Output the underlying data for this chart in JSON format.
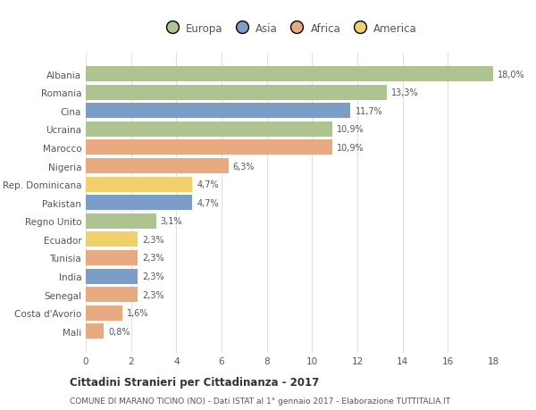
{
  "countries": [
    "Albania",
    "Romania",
    "Cina",
    "Ucraina",
    "Marocco",
    "Nigeria",
    "Rep. Dominicana",
    "Pakistan",
    "Regno Unito",
    "Ecuador",
    "Tunisia",
    "India",
    "Senegal",
    "Costa d'Avorio",
    "Mali"
  ],
  "values": [
    18.0,
    13.3,
    11.7,
    10.9,
    10.9,
    6.3,
    4.7,
    4.7,
    3.1,
    2.3,
    2.3,
    2.3,
    2.3,
    1.6,
    0.8
  ],
  "labels": [
    "18,0%",
    "13,3%",
    "11,7%",
    "10,9%",
    "10,9%",
    "6,3%",
    "4,7%",
    "4,7%",
    "3,1%",
    "2,3%",
    "2,3%",
    "2,3%",
    "2,3%",
    "1,6%",
    "0,8%"
  ],
  "continents": [
    "Europa",
    "Europa",
    "Asia",
    "Europa",
    "Africa",
    "Africa",
    "America",
    "Asia",
    "Europa",
    "America",
    "Africa",
    "Asia",
    "Africa",
    "Africa",
    "Africa"
  ],
  "continent_colors": {
    "Europa": "#adc490",
    "Asia": "#7b9ec8",
    "Africa": "#e8aa80",
    "America": "#f0d068"
  },
  "title": "Cittadini Stranieri per Cittadinanza - 2017",
  "subtitle": "COMUNE DI MARANO TICINO (NO) - Dati ISTAT al 1° gennaio 2017 - Elaborazione TUTTITALIA.IT",
  "xlim": [
    0,
    18
  ],
  "xticks": [
    0,
    2,
    4,
    6,
    8,
    10,
    12,
    14,
    16,
    18
  ],
  "background_color": "#ffffff",
  "grid_color": "#e0e0e0",
  "text_color": "#555555",
  "bar_height": 0.82
}
